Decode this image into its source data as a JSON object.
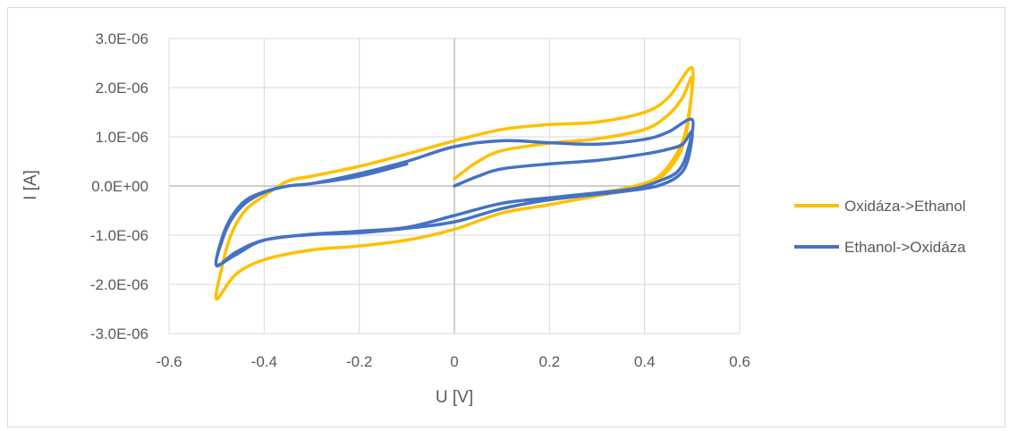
{
  "chart_data": {
    "type": "line",
    "title": "",
    "xlabel": "U [V]",
    "ylabel": "I [A]",
    "xlim": [
      -0.6,
      0.6
    ],
    "ylim": [
      -3e-06,
      3e-06
    ],
    "x_ticks": [
      "-0.6",
      "-0.4",
      "-0.2",
      "0",
      "0.2",
      "0.4",
      "0.6"
    ],
    "y_ticks": [
      "-3.0E-06",
      "-2.0E-06",
      "-1.0E-06",
      "0.0E+00",
      "1.0E-06",
      "2.0E-06",
      "3.0E-06"
    ],
    "grid": true,
    "legend_position": "right",
    "series": [
      {
        "name": "Oxidáza->Ethanol",
        "color": "#ffc000",
        "points": [
          [
            0.0,
            1.5e-07
          ],
          [
            0.05,
            5e-07
          ],
          [
            0.1,
            7.2e-07
          ],
          [
            0.2,
            8.7e-07
          ],
          [
            0.3,
            9.6e-07
          ],
          [
            0.4,
            1.15e-06
          ],
          [
            0.45,
            1.45e-06
          ],
          [
            0.48,
            1.8e-06
          ],
          [
            0.5,
            2.2e-06
          ],
          [
            0.49,
            1.2e-06
          ],
          [
            0.47,
            6e-07
          ],
          [
            0.43,
            1.5e-07
          ],
          [
            0.38,
            -5e-08
          ],
          [
            0.3,
            -2e-07
          ],
          [
            0.2,
            -3.8e-07
          ],
          [
            0.1,
            -5.5e-07
          ],
          [
            0.0,
            -8.8e-07
          ],
          [
            -0.1,
            -1.1e-06
          ],
          [
            -0.2,
            -1.22e-06
          ],
          [
            -0.3,
            -1.3e-06
          ],
          [
            -0.4,
            -1.5e-06
          ],
          [
            -0.46,
            -1.8e-06
          ],
          [
            -0.5,
            -2.3e-06
          ],
          [
            -0.49,
            -1.7e-06
          ],
          [
            -0.47,
            -1e-06
          ],
          [
            -0.44,
            -5e-07
          ],
          [
            -0.4,
            -2e-07
          ],
          [
            -0.35,
            1e-07
          ],
          [
            -0.3,
            2e-07
          ],
          [
            -0.2,
            4e-07
          ],
          [
            -0.1,
            6.5e-07
          ],
          [
            0.0,
            9.2e-07
          ],
          [
            0.1,
            1.15e-06
          ],
          [
            0.2,
            1.25e-06
          ],
          [
            0.3,
            1.3e-06
          ],
          [
            0.4,
            1.5e-06
          ],
          [
            0.45,
            1.8e-06
          ],
          [
            0.5,
            2.4e-06
          ],
          [
            0.49,
            1.3e-06
          ],
          [
            0.47,
            7e-07
          ],
          [
            0.43,
            2e-07
          ],
          [
            0.38,
            0.0
          ],
          [
            0.3,
            -1.5e-07
          ],
          [
            0.2,
            -2.8e-07
          ],
          [
            0.15,
            -3.2e-07
          ]
        ]
      },
      {
        "name": "Ethanol->Oxidáza",
        "color": "#4472c4",
        "points": [
          [
            0.0,
            0.0
          ],
          [
            0.05,
            2e-07
          ],
          [
            0.1,
            3.5e-07
          ],
          [
            0.2,
            4.5e-07
          ],
          [
            0.3,
            5.2e-07
          ],
          [
            0.4,
            6.5e-07
          ],
          [
            0.45,
            7.5e-07
          ],
          [
            0.48,
            8.5e-07
          ],
          [
            0.5,
            1.1e-06
          ],
          [
            0.49,
            5e-07
          ],
          [
            0.47,
            2e-07
          ],
          [
            0.43,
            1e-08
          ],
          [
            0.38,
            -8e-08
          ],
          [
            0.3,
            -1.7e-07
          ],
          [
            0.2,
            -2.8e-07
          ],
          [
            0.1,
            -4.6e-07
          ],
          [
            0.0,
            -7.3e-07
          ],
          [
            -0.1,
            -8.6e-07
          ],
          [
            -0.2,
            -9.5e-07
          ],
          [
            -0.3,
            -9.9e-07
          ],
          [
            -0.4,
            -1.1e-06
          ],
          [
            -0.46,
            -1.4e-06
          ],
          [
            -0.5,
            -1.6e-06
          ],
          [
            -0.49,
            -1.15e-06
          ],
          [
            -0.47,
            -7e-07
          ],
          [
            -0.44,
            -3.5e-07
          ],
          [
            -0.4,
            -1.3e-07
          ],
          [
            -0.35,
            0.0
          ],
          [
            -0.3,
            5e-08
          ],
          [
            -0.2,
            2.5e-07
          ],
          [
            -0.1,
            5e-07
          ],
          [
            0.0,
            8e-07
          ],
          [
            0.1,
            9.2e-07
          ],
          [
            0.2,
            8.8e-07
          ],
          [
            0.3,
            8.5e-07
          ],
          [
            0.4,
            9.5e-07
          ],
          [
            0.45,
            1.1e-06
          ],
          [
            0.5,
            1.35e-06
          ],
          [
            0.49,
            7e-07
          ],
          [
            0.47,
            3e-07
          ],
          [
            0.43,
            1e-07
          ],
          [
            0.38,
            -5e-08
          ],
          [
            0.3,
            -1.4e-07
          ],
          [
            0.2,
            -2.4e-07
          ],
          [
            0.1,
            -3.5e-07
          ],
          [
            0.0,
            -6e-07
          ],
          [
            -0.1,
            -8.4e-07
          ],
          [
            -0.2,
            -9.2e-07
          ],
          [
            -0.3,
            -9.8e-07
          ],
          [
            -0.4,
            -1.1e-06
          ],
          [
            -0.46,
            -1.35e-06
          ],
          [
            -0.5,
            -1.62e-06
          ],
          [
            -0.49,
            -1.1e-06
          ],
          [
            -0.47,
            -6.5e-07
          ],
          [
            -0.44,
            -3e-07
          ],
          [
            -0.4,
            -1.2e-07
          ],
          [
            -0.35,
            0.0
          ],
          [
            -0.3,
            5e-08
          ],
          [
            -0.2,
            2e-07
          ],
          [
            -0.1,
            4.5e-07
          ]
        ]
      }
    ]
  }
}
